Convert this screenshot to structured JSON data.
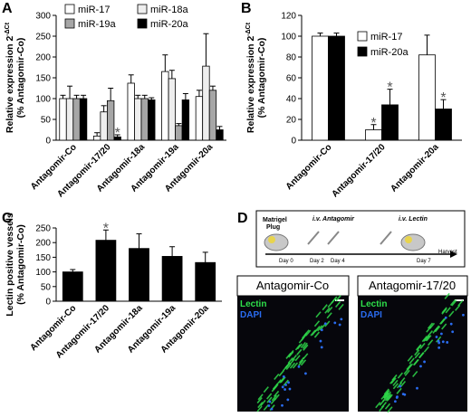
{
  "panel_labels": [
    "A",
    "B",
    "C",
    "D"
  ],
  "chart_data": [
    {
      "type": "bar",
      "ylabel": [
        "Relative expression 2",
        "-ΔCt",
        "(% Antagomir-Co)"
      ],
      "categories": [
        "Antagomir-Co",
        "Antagomir-17/20",
        "Antagomir-18a",
        "Antagomir-19a",
        "Antagomir-20a"
      ],
      "series": [
        {
          "name": "miR-17",
          "color": "#ffffff",
          "values": [
            100,
            10,
            137,
            165,
            105
          ],
          "errors": [
            8,
            8,
            20,
            40,
            15
          ]
        },
        {
          "name": "miR-18a",
          "color": "#eeeeee",
          "values": [
            100,
            68,
            100,
            148,
            178
          ],
          "errors": [
            30,
            15,
            8,
            20,
            78
          ]
        },
        {
          "name": "miR-19a",
          "color": "#a6a6a6",
          "values": [
            100,
            95,
            100,
            35,
            120
          ],
          "errors": [
            8,
            30,
            8,
            5,
            10
          ]
        },
        {
          "name": "miR-20a",
          "color": "#000000",
          "values": [
            100,
            8,
            97,
            97,
            25
          ],
          "errors": [
            8,
            5,
            5,
            15,
            8
          ],
          "significance": [
            null,
            "*",
            null,
            null,
            null
          ]
        }
      ],
      "ylim": [
        0,
        300
      ],
      "yticks": [
        0,
        50,
        100,
        150,
        200,
        250,
        300
      ],
      "legend": "top"
    },
    {
      "type": "bar",
      "ylabel": [
        "Relative expression 2",
        "-ΔCt",
        "(% Antagomir-Co)"
      ],
      "categories": [
        "Antagomir-Co",
        "Antagomir-17/20",
        "Antagomir-20a"
      ],
      "series": [
        {
          "name": "miR-17",
          "color": "#ffffff",
          "values": [
            100,
            10,
            82
          ],
          "errors": [
            3,
            5,
            19
          ],
          "significance": [
            null,
            "*",
            null
          ]
        },
        {
          "name": "miR-20a",
          "color": "#000000",
          "values": [
            100,
            34,
            30
          ],
          "errors": [
            3,
            15,
            9
          ],
          "significance": [
            null,
            "*",
            "*"
          ]
        }
      ],
      "ylim": [
        0,
        120
      ],
      "yticks": [
        0,
        20,
        40,
        60,
        80,
        100,
        120
      ],
      "legend": "right"
    },
    {
      "type": "bar",
      "ylabel": [
        "Lectin positive vessels",
        "(% Antagomir-Co)"
      ],
      "categories": [
        "Antagomir-Co",
        "Antagomir-17/20",
        "Antagomir-18a",
        "Antagomir-19a",
        "Antagomir-20a"
      ],
      "color": "#000000",
      "values": [
        100,
        208,
        180,
        153,
        132
      ],
      "errors": [
        8,
        35,
        50,
        33,
        35
      ],
      "significance": [
        null,
        "*",
        null,
        null,
        null
      ],
      "ylim": [
        0,
        250
      ],
      "yticks": [
        0,
        50,
        100,
        150,
        200,
        250
      ]
    }
  ],
  "timeline": {
    "plug_label": [
      "Matrigel",
      "Plug"
    ],
    "antagomir_label": "i.v. Antagomir",
    "lectin_label": "i.v. Lectin",
    "days": [
      "Day 0",
      "Day 2",
      "Day 4",
      "Day 7"
    ],
    "end_label": "Harvest"
  },
  "micrographs": [
    {
      "title": "Antagomir-Co",
      "channels": [
        "Lectin",
        "DAPI"
      ]
    },
    {
      "title": "Antagomir-17/20",
      "channels": [
        "Lectin",
        "DAPI"
      ]
    }
  ]
}
